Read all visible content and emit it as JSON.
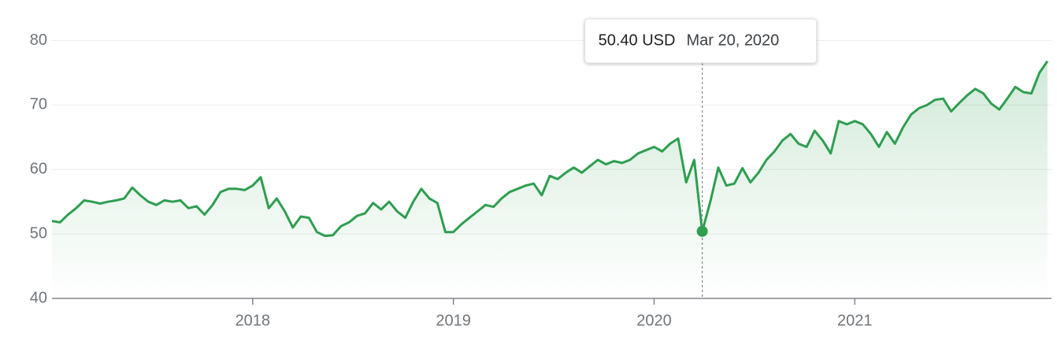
{
  "chart_data": {
    "type": "line",
    "x": [
      2017.0,
      2017.04,
      2017.08,
      2017.12,
      2017.16,
      2017.2,
      2017.24,
      2017.28,
      2017.32,
      2017.36,
      2017.4,
      2017.44,
      2017.48,
      2017.52,
      2017.56,
      2017.6,
      2017.64,
      2017.68,
      2017.72,
      2017.76,
      2017.8,
      2017.84,
      2017.88,
      2017.92,
      2017.96,
      2018.0,
      2018.04,
      2018.08,
      2018.12,
      2018.16,
      2018.2,
      2018.24,
      2018.28,
      2018.32,
      2018.36,
      2018.4,
      2018.44,
      2018.48,
      2018.52,
      2018.56,
      2018.6,
      2018.64,
      2018.68,
      2018.72,
      2018.76,
      2018.8,
      2018.84,
      2018.88,
      2018.92,
      2018.96,
      2019.0,
      2019.04,
      2019.08,
      2019.12,
      2019.16,
      2019.2,
      2019.24,
      2019.28,
      2019.32,
      2019.36,
      2019.4,
      2019.44,
      2019.48,
      2019.52,
      2019.56,
      2019.6,
      2019.64,
      2019.68,
      2019.72,
      2019.76,
      2019.8,
      2019.84,
      2019.88,
      2019.92,
      2019.96,
      2020.0,
      2020.04,
      2020.08,
      2020.12,
      2020.16,
      2020.2,
      2020.24,
      2020.28,
      2020.32,
      2020.36,
      2020.4,
      2020.44,
      2020.48,
      2020.52,
      2020.56,
      2020.6,
      2020.64,
      2020.68,
      2020.72,
      2020.76,
      2020.8,
      2020.84,
      2020.88,
      2020.92,
      2020.96,
      2021.0,
      2021.04,
      2021.08,
      2021.12,
      2021.16,
      2021.2,
      2021.24,
      2021.28,
      2021.32,
      2021.36,
      2021.4,
      2021.44,
      2021.48,
      2021.52,
      2021.56,
      2021.6,
      2021.64,
      2021.68,
      2021.72,
      2021.76,
      2021.8,
      2021.84,
      2021.88,
      2021.92,
      2021.96
    ],
    "values": [
      52,
      51.8,
      53,
      54,
      55.2,
      55,
      54.7,
      55,
      55.2,
      55.5,
      57.2,
      56,
      55,
      54.5,
      55.2,
      55,
      55.2,
      54,
      54.3,
      53,
      54.5,
      56.5,
      57,
      57,
      56.8,
      57.5,
      58.8,
      54,
      55.5,
      53.5,
      51,
      52.7,
      52.5,
      50.3,
      49.7,
      49.8,
      51.2,
      51.8,
      52.8,
      53.2,
      54.8,
      53.8,
      55,
      53.5,
      52.5,
      55,
      57,
      55.5,
      54.8,
      50.3,
      50.3,
      51.5,
      52.5,
      53.5,
      54.5,
      54.2,
      55.5,
      56.5,
      57,
      57.5,
      57.8,
      56,
      59,
      58.5,
      59.5,
      60.3,
      59.5,
      60.5,
      61.5,
      60.8,
      61.3,
      61,
      61.5,
      62.5,
      63,
      63.5,
      62.8,
      64,
      64.8,
      58,
      61.5,
      50.4,
      55,
      60.3,
      57.5,
      57.8,
      60.2,
      58,
      59.5,
      61.5,
      62.8,
      64.5,
      65.5,
      64,
      63.5,
      66,
      64.5,
      62.5,
      67.5,
      67,
      67.5,
      67,
      65.5,
      63.5,
      65.8,
      64,
      66.5,
      68.5,
      69.5,
      70,
      70.8,
      71,
      69,
      70.3,
      71.5,
      72.5,
      71.8,
      70.2,
      69.3,
      71,
      72.8,
      72,
      71.8,
      75,
      76.8
    ],
    "color": "#2e9e4f",
    "xlim": [
      2017.0,
      2021.98
    ],
    "xticks": [
      2018,
      2019,
      2020,
      2021
    ],
    "ylim": [
      40,
      82.5
    ],
    "yticks": [
      40,
      50,
      60,
      70,
      80
    ],
    "grid": true,
    "tooltip": {
      "x": 2020.24,
      "value": 50.4,
      "label": "50.40 USD",
      "date": "Mar 20, 2020"
    }
  }
}
